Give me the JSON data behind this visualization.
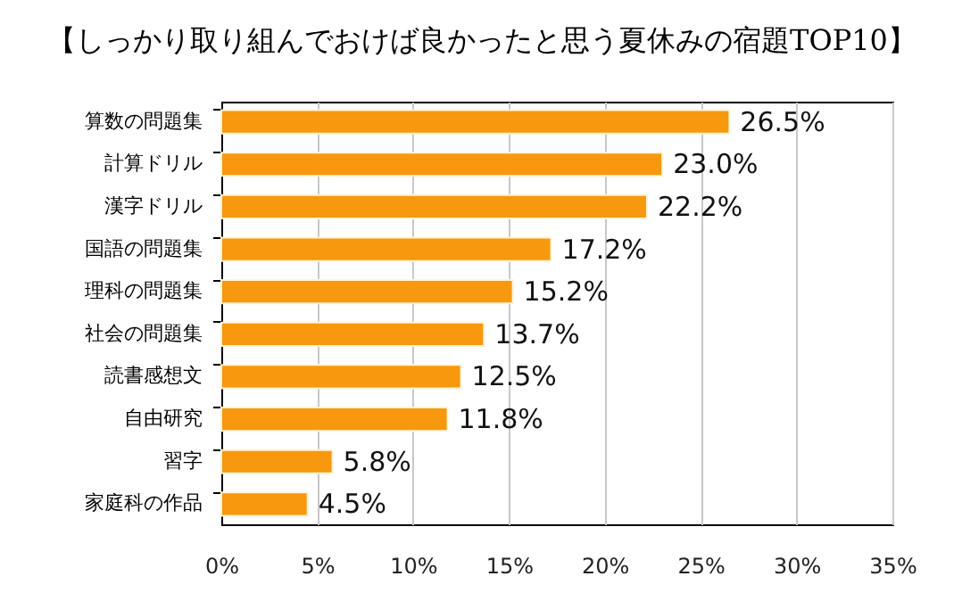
{
  "chart_data": {
    "type": "bar",
    "orientation": "horizontal",
    "title": "【しっかり取り組んでおけば良かったと思う夏休みの宿題TOP10】",
    "categories": [
      "算数の問題集",
      "計算ドリル",
      "漢字ドリル",
      "国語の問題集",
      "理科の問題集",
      "社会の問題集",
      "読書感想文",
      "自由研究",
      "習字",
      "家庭科の作品"
    ],
    "values": [
      26.5,
      23.0,
      22.2,
      17.2,
      15.2,
      13.7,
      12.5,
      11.8,
      5.8,
      4.5
    ],
    "value_labels": [
      "26.5%",
      "23.0%",
      "22.2%",
      "17.2%",
      "15.2%",
      "13.7%",
      "12.5%",
      "11.8%",
      "5.8%",
      "4.5%"
    ],
    "color": "#f7980f",
    "xlim": [
      0,
      35
    ],
    "xticks": [
      {
        "value": 0,
        "label": "0%"
      },
      {
        "value": 5,
        "label": "5%"
      },
      {
        "value": 10,
        "label": "10%"
      },
      {
        "value": 15,
        "label": "15%"
      },
      {
        "value": 20,
        "label": "20%"
      },
      {
        "value": 25,
        "label": "25%"
      },
      {
        "value": 30,
        "label": "30%"
      },
      {
        "value": 35,
        "label": "35%"
      }
    ],
    "grid": "x"
  }
}
